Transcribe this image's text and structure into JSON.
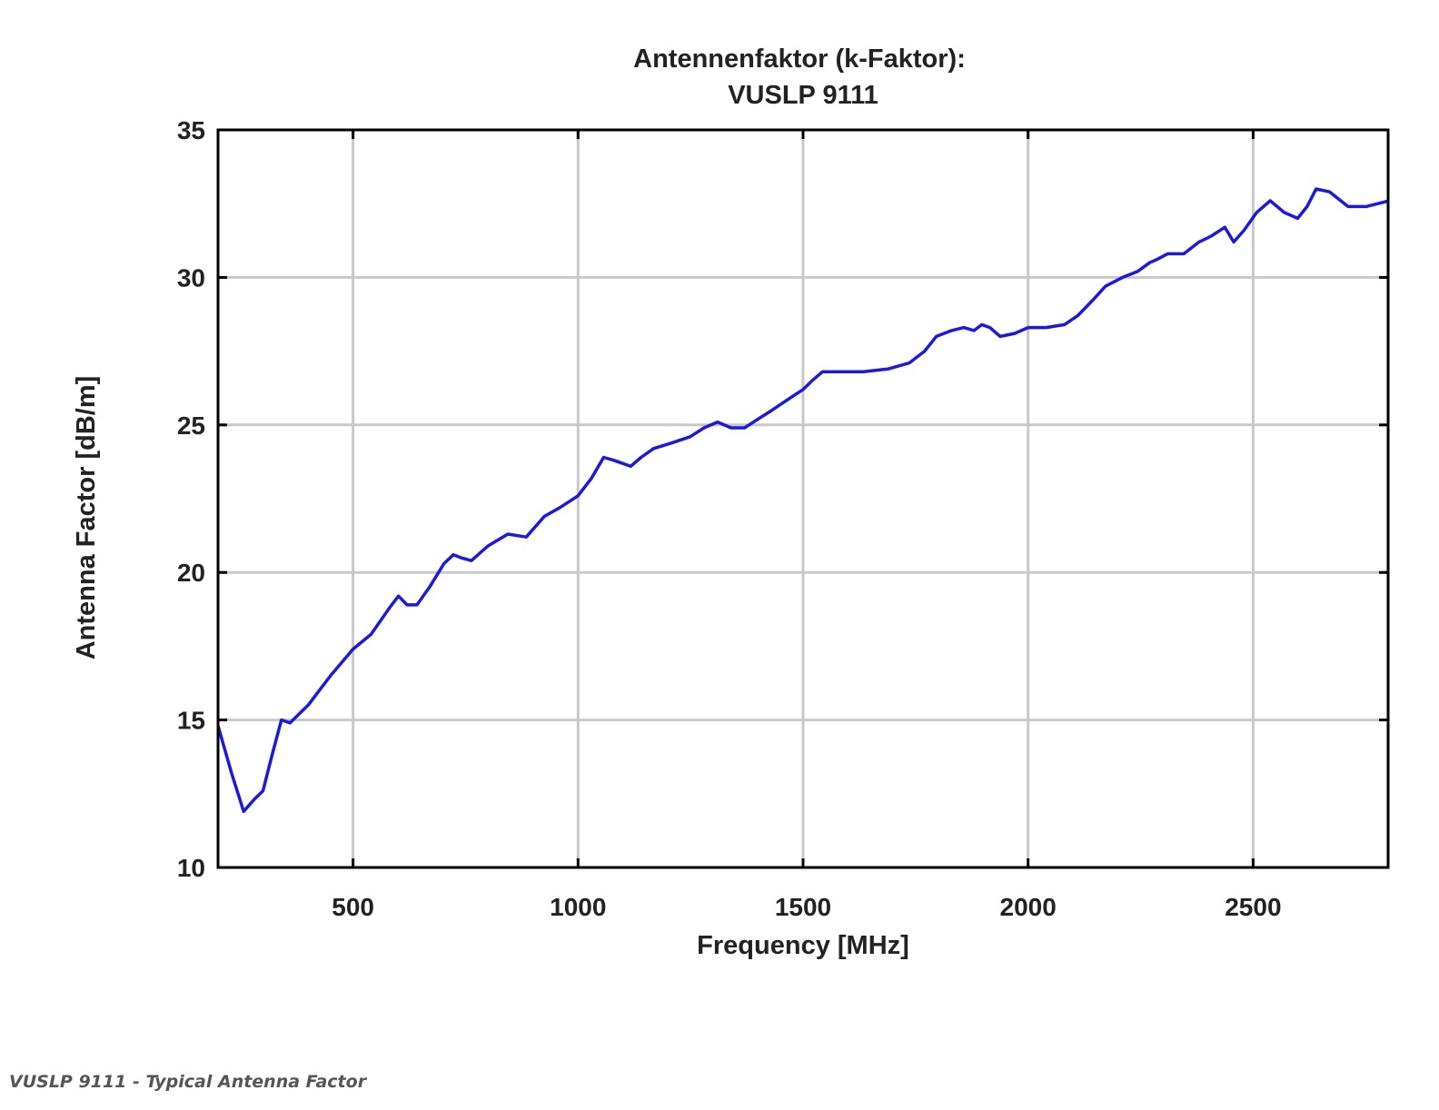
{
  "chart_data": {
    "type": "line",
    "title": [
      "Antennenfaktor (k-Faktor):",
      "VUSLP 9111"
    ],
    "xlabel": "Frequency [MHz]",
    "ylabel": "Antenna Factor [dB/m]",
    "xlim": [
      200,
      2800
    ],
    "ylim": [
      10,
      35
    ],
    "xticks": [
      500,
      1000,
      1500,
      2000,
      2500
    ],
    "yticks": [
      10,
      15,
      20,
      25,
      30,
      35
    ],
    "grid": true,
    "legend": "none",
    "series": [
      {
        "name": "VUSLP 9111",
        "color": "#1a1adc",
        "x": [
          200,
          230,
          257,
          280,
          300,
          320,
          341,
          360,
          400,
          450,
          500,
          540,
          581,
          601,
          620,
          642,
          670,
          702,
          723,
          740,
          763,
          800,
          844,
          885,
          925,
          960,
          1000,
          1030,
          1057,
          1080,
          1117,
          1140,
          1168,
          1210,
          1249,
          1280,
          1310,
          1340,
          1370,
          1400,
          1431,
          1470,
          1500,
          1520,
          1543,
          1590,
          1634,
          1690,
          1736,
          1770,
          1796,
          1830,
          1857,
          1880,
          1897,
          1915,
          1938,
          1970,
          2000,
          2040,
          2081,
          2110,
          2142,
          2172,
          2210,
          2243,
          2270,
          2285,
          2310,
          2346,
          2380,
          2407,
          2437,
          2457,
          2480,
          2508,
          2538,
          2569,
          2599,
          2620,
          2640,
          2670,
          2711,
          2751,
          2802
        ],
        "y": [
          14.8,
          13.2,
          11.9,
          12.3,
          12.6,
          13.8,
          15.0,
          14.9,
          15.5,
          16.5,
          17.4,
          17.9,
          18.8,
          19.2,
          18.9,
          18.9,
          19.5,
          20.3,
          20.6,
          20.5,
          20.4,
          20.9,
          21.3,
          21.2,
          21.9,
          22.2,
          22.6,
          23.2,
          23.9,
          23.8,
          23.6,
          23.9,
          24.2,
          24.4,
          24.6,
          24.9,
          25.1,
          24.9,
          24.9,
          25.2,
          25.5,
          25.9,
          26.2,
          26.5,
          26.8,
          26.8,
          26.8,
          26.9,
          27.1,
          27.5,
          28.0,
          28.2,
          28.3,
          28.2,
          28.4,
          28.3,
          28.0,
          28.1,
          28.3,
          28.3,
          28.4,
          28.7,
          29.2,
          29.7,
          30.0,
          30.2,
          30.5,
          30.6,
          30.8,
          30.8,
          31.2,
          31.4,
          31.7,
          31.2,
          31.6,
          32.2,
          32.6,
          32.2,
          32.0,
          32.4,
          33.0,
          32.9,
          32.4,
          32.4,
          32.6
        ]
      }
    ]
  },
  "caption": "VUSLP 9111 - Typical Antenna Factor"
}
